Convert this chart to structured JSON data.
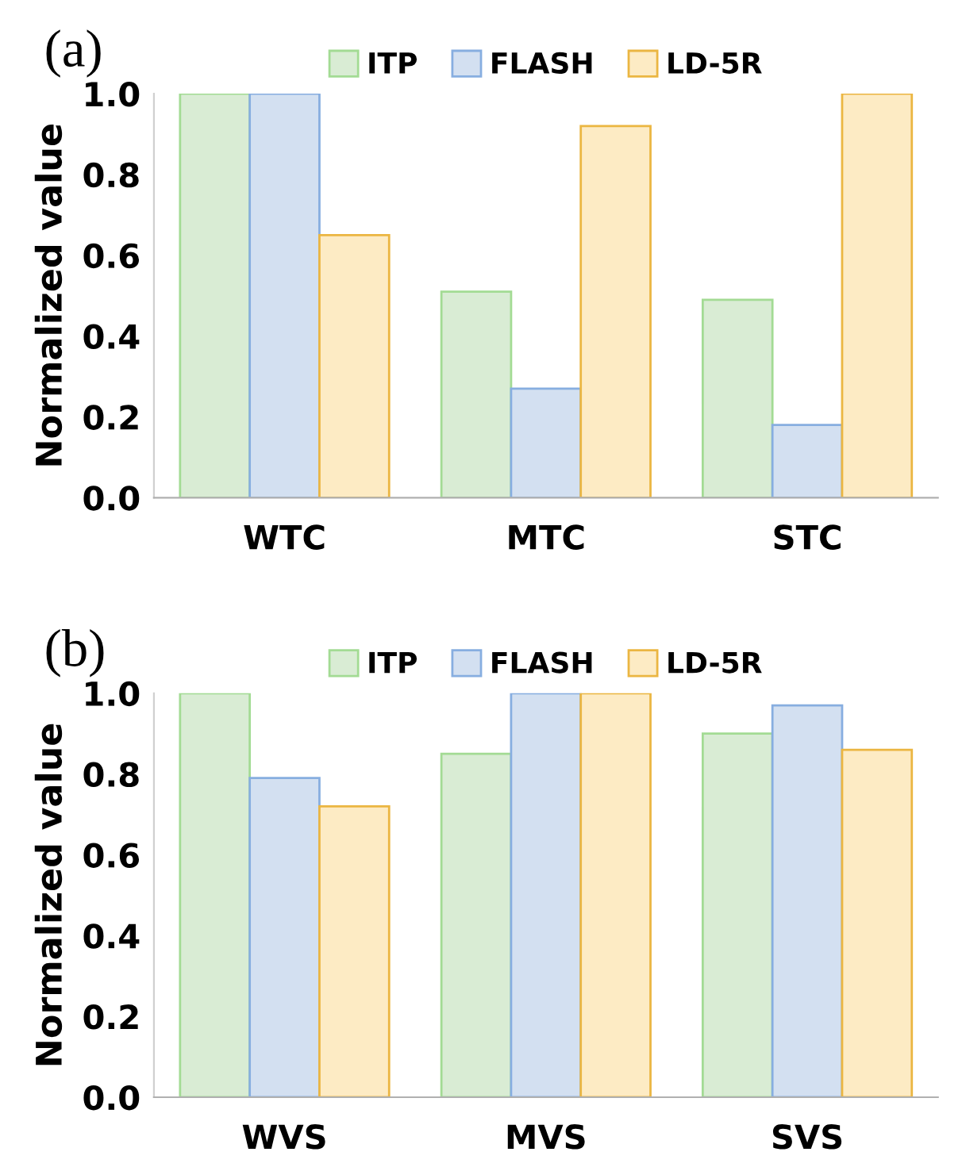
{
  "chart_data": [
    {
      "type": "bar",
      "title": "(a)",
      "ylabel": "Normalized value",
      "categories": [
        "WTC",
        "MTC",
        "STC"
      ],
      "series": [
        {
          "name": "ITP",
          "color": "#d9ecd4",
          "values": [
            1.0,
            0.51,
            0.49
          ]
        },
        {
          "name": "FLASH",
          "color": "#d3e0f1",
          "values": [
            1.0,
            0.27,
            0.18
          ]
        },
        {
          "name": "LD-5R",
          "color": "#fdebc4",
          "values": [
            0.65,
            0.92,
            1.0
          ]
        }
      ],
      "ylim": [
        0,
        1.0
      ],
      "yticks": [
        {
          "value": 0,
          "label": "0.0"
        },
        {
          "value": 0.2,
          "label": "0.2"
        },
        {
          "value": 0.4,
          "label": "0.4"
        },
        {
          "value": 0.6,
          "label": "0.6"
        },
        {
          "value": 0.8,
          "label": "0.8"
        },
        {
          "value": 1.0,
          "label": "1.0"
        }
      ],
      "legend": "top",
      "grid": false
    },
    {
      "type": "bar",
      "title": "(b)",
      "ylabel": "Normalized value",
      "categories": [
        "WVS",
        "MVS",
        "SVS"
      ],
      "series": [
        {
          "name": "ITP",
          "color": "#d9ecd4",
          "values": [
            1.0,
            0.85,
            0.9
          ]
        },
        {
          "name": "FLASH",
          "color": "#d3e0f1",
          "values": [
            0.79,
            1.0,
            0.97
          ]
        },
        {
          "name": "LD-5R",
          "color": "#fdebc4",
          "values": [
            0.72,
            1.0,
            0.86
          ]
        }
      ],
      "ylim": [
        0,
        1.0
      ],
      "yticks": [
        {
          "value": 0,
          "label": "0.0"
        },
        {
          "value": 0.2,
          "label": "0.2"
        },
        {
          "value": 0.4,
          "label": "0.4"
        },
        {
          "value": 0.6,
          "label": "0.6"
        },
        {
          "value": 0.8,
          "label": "0.8"
        },
        {
          "value": 1.0,
          "label": "1.0"
        }
      ],
      "legend": "top",
      "grid": false
    }
  ]
}
